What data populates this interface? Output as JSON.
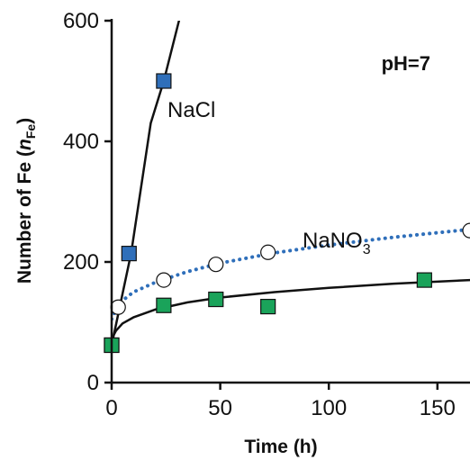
{
  "chart_data": {
    "type": "scatter",
    "xlabel": "Time (h)",
    "ylabel_main": "Number of Fe (",
    "ylabel_symbol": "n",
    "ylabel_sub": "Fe",
    "ylabel_close": ")",
    "xlim": [
      0,
      165
    ],
    "ylim": [
      0,
      600
    ],
    "x_ticks": [
      0,
      50,
      100,
      150
    ],
    "y_ticks": [
      0,
      200,
      400,
      600
    ],
    "annotations": {
      "condition": "pH=7",
      "nacl": "NaCl",
      "nano3_main": "NaNO",
      "nano3_sub": "3"
    },
    "series": [
      {
        "name": "NaCl",
        "marker": "square",
        "color": "#2f6fba",
        "points": [
          [
            0,
            62
          ],
          [
            8,
            214
          ],
          [
            24,
            500
          ]
        ],
        "fit": {
          "style": "solid",
          "color": "#111111",
          "points": [
            [
              0,
              62
            ],
            [
              9,
              215
            ],
            [
              18,
              430
            ],
            [
              24,
              500
            ],
            [
              31,
              600
            ]
          ]
        }
      },
      {
        "name": "",
        "marker": "circle",
        "color": "#ffffff",
        "points": [
          [
            3,
            125
          ],
          [
            24,
            170
          ],
          [
            48,
            196
          ],
          [
            72,
            216
          ],
          [
            165,
            252
          ]
        ],
        "fit": {
          "style": "dotted",
          "color": "#2f6fba",
          "points": [
            [
              0,
              105
            ],
            [
              2,
              122
            ],
            [
              5,
              136
            ],
            [
              10,
              150
            ],
            [
              20,
              166
            ],
            [
              35,
              184
            ],
            [
              50,
              198
            ],
            [
              75,
              215
            ],
            [
              100,
              228
            ],
            [
              130,
              241
            ],
            [
              165,
              254
            ]
          ]
        }
      },
      {
        "name": "NaNO3",
        "marker": "square",
        "color": "#1aa35a",
        "points": [
          [
            0,
            62
          ],
          [
            24,
            128
          ],
          [
            48,
            138
          ],
          [
            72,
            126
          ],
          [
            144,
            170
          ]
        ],
        "fit": {
          "style": "solid",
          "color": "#111111",
          "points": [
            [
              0,
              72
            ],
            [
              2,
              86
            ],
            [
              5,
              98
            ],
            [
              10,
              108
            ],
            [
              20,
              121
            ],
            [
              35,
              133
            ],
            [
              50,
              141
            ],
            [
              75,
              150
            ],
            [
              100,
              157
            ],
            [
              130,
              164
            ],
            [
              165,
              170
            ]
          ]
        }
      }
    ]
  }
}
